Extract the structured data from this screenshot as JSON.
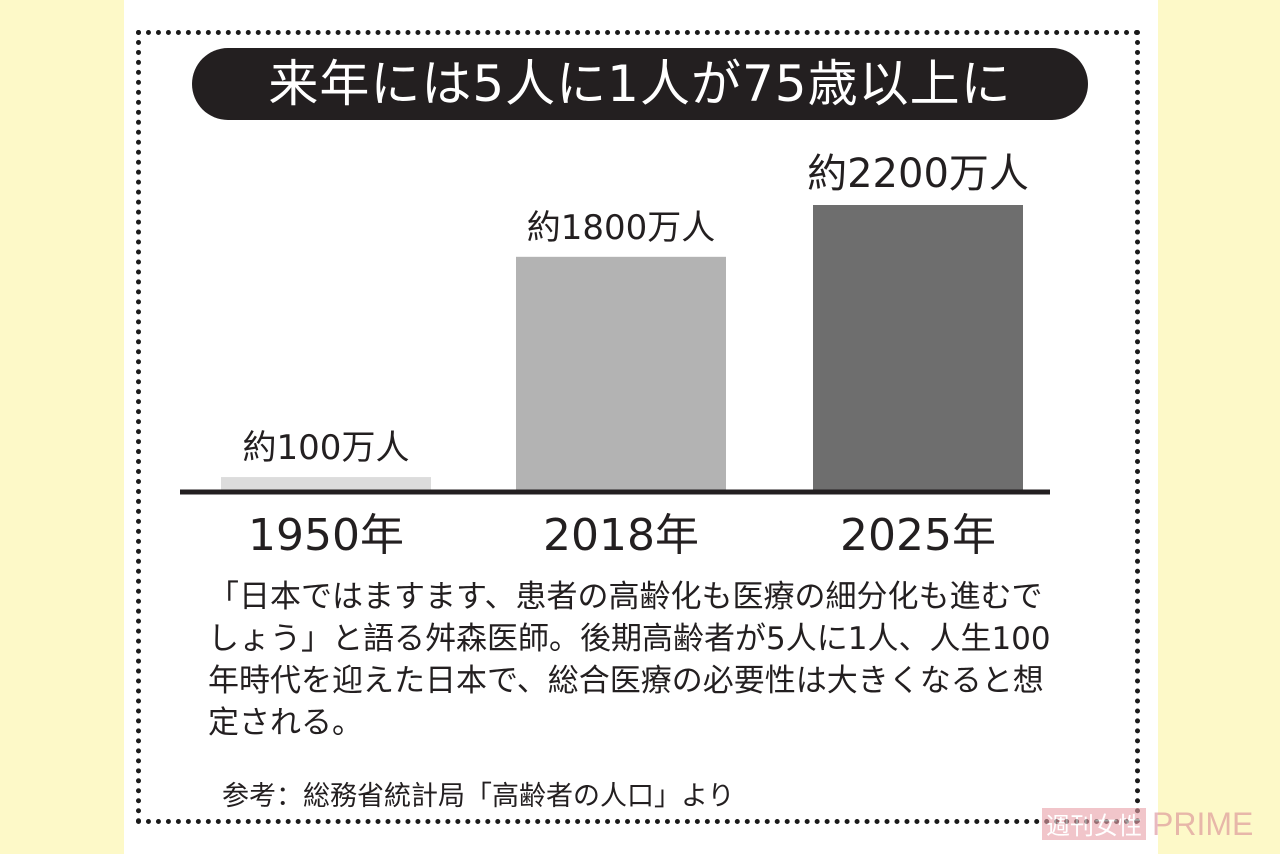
{
  "chart_data": {
    "type": "bar",
    "title": "来年には5人に1人が75歳以上に",
    "categories": [
      "1950年",
      "2018年",
      "2025年"
    ],
    "values": [
      100,
      1800,
      2200
    ],
    "value_unit": "万人",
    "data_labels": [
      "約100万人",
      "約1800万人",
      "約2200万人"
    ],
    "bar_colors": [
      "#dcdcdc",
      "#b3b3b3",
      "#6e6e6e"
    ],
    "ylim": [
      0,
      2200
    ],
    "grid": false
  },
  "caption": "「日本ではますます、患者の高齢化も医療の細分化も進むでしょう」と語る舛森医師。後期高齢者が5人に1人、人生100年時代を迎えた日本で、総合医療の必要性は大きくなると想定される。",
  "source": "参考：総務省統計局「高齢者の人口」より",
  "watermark": {
    "left": "週刊女性",
    "right": "PRIME"
  },
  "colors": {
    "background": "#fdf9c8",
    "panel": "#ffffff",
    "title_bg": "#231f20",
    "text": "#231f20"
  }
}
